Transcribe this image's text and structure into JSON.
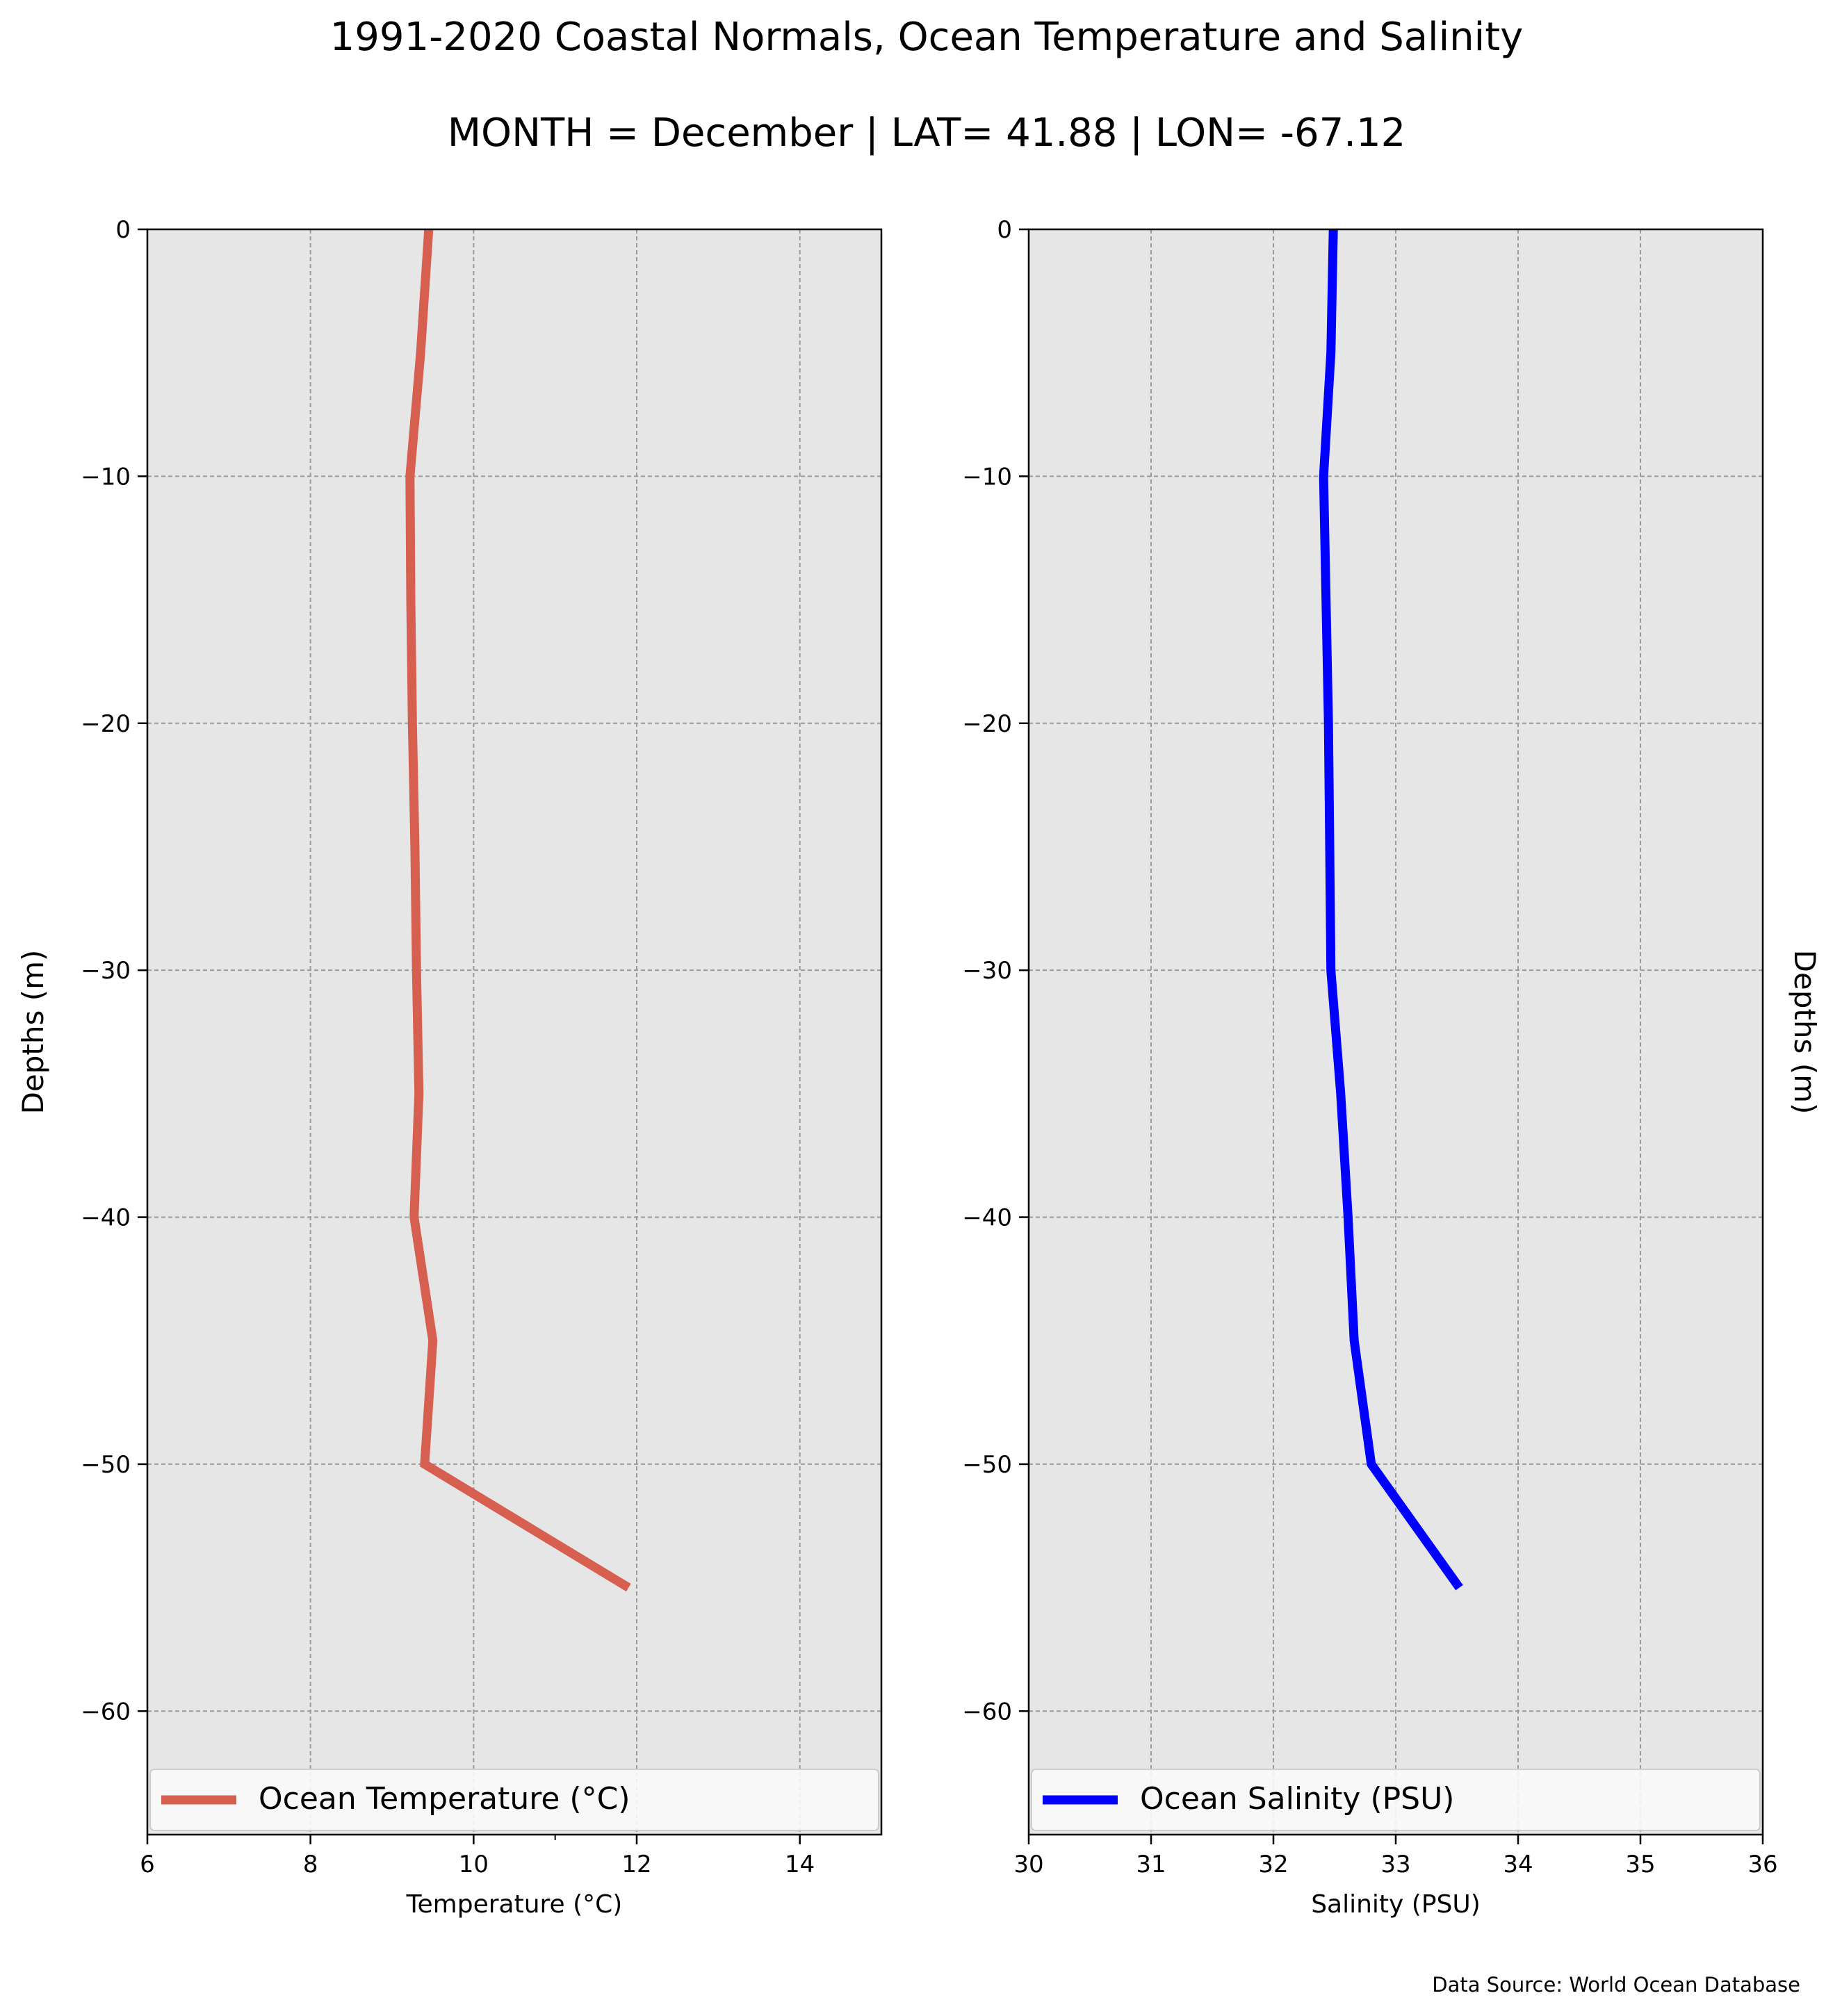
{
  "figure": {
    "title": "1991-2020 Coastal Normals, Ocean Temperature and Salinity",
    "subtitle": "MONTH = December | LAT= 41.88 | LON= -67.12",
    "source": "Data Source: World Ocean Database"
  },
  "chart_data": [
    {
      "type": "line",
      "xlabel": "Temperature ($^\\circ$C)",
      "xlabel_display": "Temperature (°C)",
      "ylabel": "Depths (m)",
      "ylabel_side": "left",
      "xlim": [
        6,
        15
      ],
      "ylim": [
        -65,
        0
      ],
      "xticks": [
        6,
        8,
        10,
        12,
        14
      ],
      "xticklabels": [
        "6",
        "8",
        "10",
        "12",
        "14"
      ],
      "yticks": [
        0,
        -10,
        -20,
        -30,
        -40,
        -50,
        -60
      ],
      "yticklabels": [
        "0",
        "−10",
        "−20",
        "−30",
        "−40",
        "−50",
        "−60"
      ],
      "grid": true,
      "legend_position": "bottom",
      "series": [
        {
          "name": "Ocean Temperature ($^\\circ$C)",
          "name_display": "Ocean Temperature (°C)",
          "color": "#d65f4f",
          "x": [
            9.45,
            9.35,
            9.22,
            9.23,
            9.25,
            9.28,
            9.3,
            9.33,
            9.27,
            9.5,
            9.4,
            11.9
          ],
          "y": [
            0,
            -5,
            -10,
            -15,
            -20,
            -25,
            -30,
            -35,
            -40,
            -45,
            -50,
            -55
          ]
        }
      ]
    },
    {
      "type": "line",
      "xlabel": "Salinity (PSU)",
      "xlabel_display": "Salinity (PSU)",
      "ylabel": "Depths (m)",
      "ylabel_side": "right",
      "xlim": [
        30,
        36
      ],
      "ylim": [
        -65,
        0
      ],
      "xticks": [
        30,
        31,
        32,
        33,
        34,
        35,
        36
      ],
      "xticklabels": [
        "30",
        "31",
        "32",
        "33",
        "34",
        "35",
        "36"
      ],
      "yticks": [
        0,
        -10,
        -20,
        -30,
        -40,
        -50,
        -60
      ],
      "yticklabels": [
        "0",
        "−10",
        "−20",
        "−30",
        "−40",
        "−50",
        "−60"
      ],
      "grid": true,
      "legend_position": "bottom",
      "series": [
        {
          "name": "Ocean Salinity (PSU)",
          "name_display": "Ocean Salinity (PSU)",
          "color": "#0000ff",
          "x": [
            32.49,
            32.47,
            32.41,
            32.43,
            32.45,
            32.46,
            32.47,
            32.55,
            32.61,
            32.66,
            32.8,
            33.52
          ],
          "y": [
            0,
            -5,
            -10,
            -15,
            -20,
            -25,
            -30,
            -35,
            -40,
            -45,
            -50,
            -55
          ]
        }
      ]
    }
  ]
}
